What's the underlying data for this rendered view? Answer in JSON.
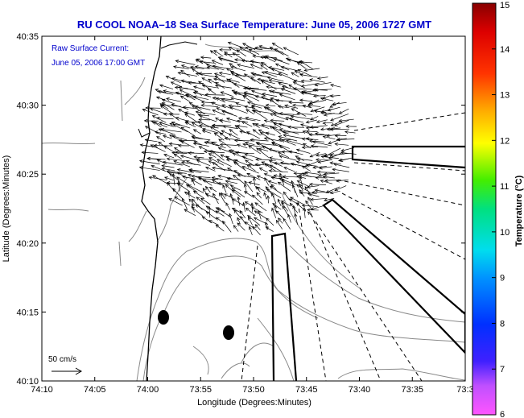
{
  "figure": {
    "title": "RU COOL  NOAA–18  Sea Surface Temperature:  June 05, 2006 1727 GMT",
    "title_color": "#0000cc",
    "annotation_line1": "Raw Surface Current:",
    "annotation_line2": "June 05, 2006 17:00 GMT",
    "annotation_color": "#0000cc",
    "scale_label": "50 cm/s",
    "xlabel": "Longitude (Degrees:Minutes)",
    "ylabel": "Latitude (Degrees:Minutes)",
    "colorbar_label": "Temperature (°C)"
  },
  "chart_data": {
    "type": "map",
    "title": "RU COOL  NOAA–18  Sea Surface Temperature:  June 05, 2006 1727 GMT",
    "xlabel": "Longitude (Degrees:Minutes)",
    "ylabel": "Latitude (Degrees:Minutes)",
    "x_ticks": [
      "74:10",
      "74:05",
      "74:00",
      "73:55",
      "73:50",
      "73:45",
      "73:40",
      "73:35",
      "73:3"
    ],
    "y_ticks": [
      "40:10",
      "40:15",
      "40:20",
      "40:25",
      "40:30",
      "40:35"
    ],
    "x_range_minutes_west": [
      10,
      30
    ],
    "y_range_minutes_north": [
      10,
      35
    ],
    "colorbar": {
      "label": "Temperature (°C)",
      "ticks": [
        "6",
        "7",
        "8",
        "9",
        "10",
        "11",
        "12",
        "13",
        "14",
        "15"
      ],
      "range": [
        6,
        15
      ]
    },
    "current_scale": "50 cm/s",
    "current_timestamp": "June 05, 2006 17:00 GMT"
  }
}
